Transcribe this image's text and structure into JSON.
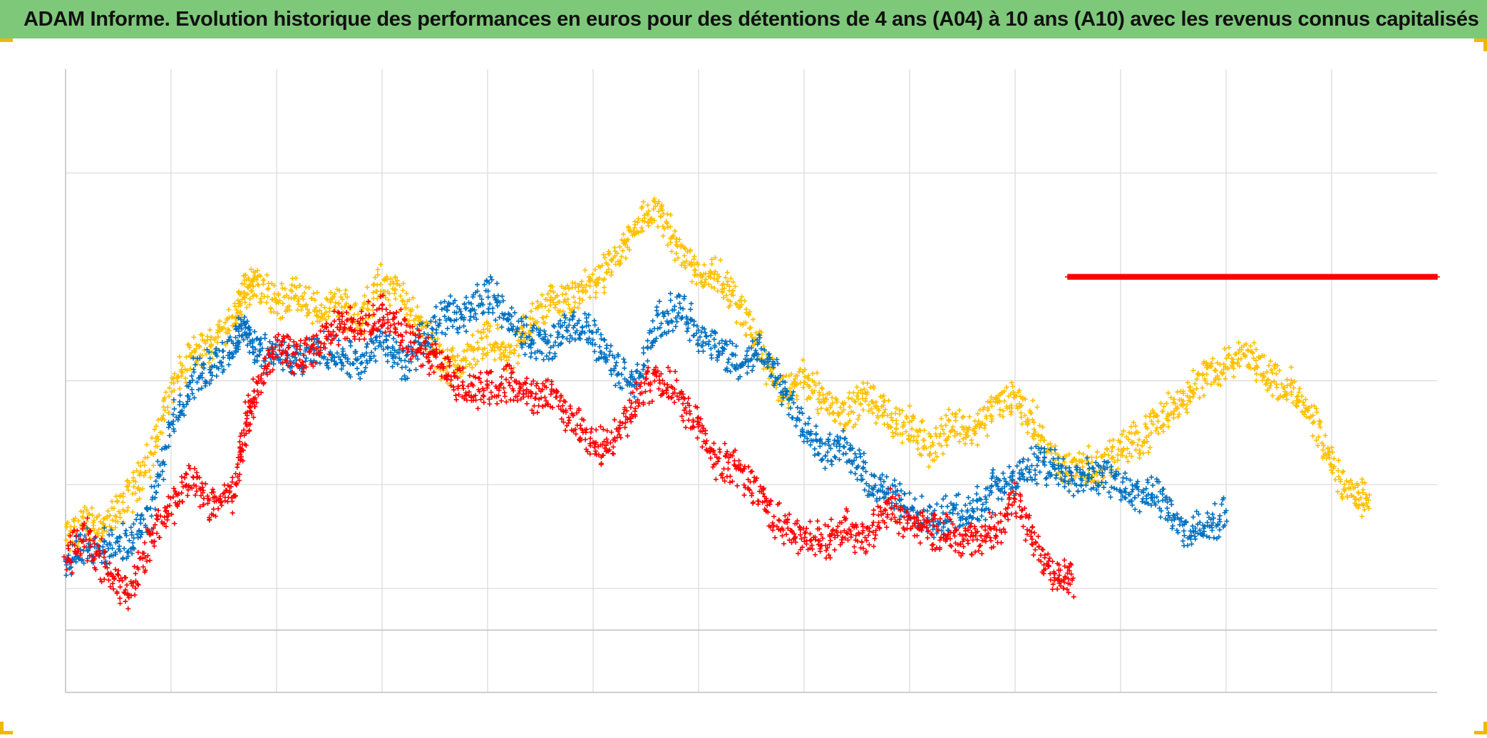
{
  "title": "ADAM Informe. Evolution historique des performances en euros pour des détentions de 4 ans (A04) à 10 ans (A10) avec les revenus connus capitalisés",
  "colors": {
    "title_bg": "#7ec87a",
    "corner_marks": "#f2b705",
    "grid": "#d9d9d9",
    "axis": "#bfbfbf",
    "series_yellow": "#ffc000",
    "series_blue": "#0070c0",
    "series_red": "#ff0000"
  },
  "chart_data": {
    "type": "scatter",
    "title": "ADAM Informe. Evolution historique des performances en euros pour des détentions de 4 ans (A04) à 10 ans (A10) avec les revenus connus capitalisés",
    "xlabel": "",
    "ylabel": "",
    "tick_labels_visible": false,
    "xlim": [
      0,
      13
    ],
    "ylim": [
      -0.6,
      5.4
    ],
    "grid": true,
    "x_gridlines": [
      1,
      2,
      3,
      4,
      5,
      6,
      7,
      8,
      9,
      10,
      11,
      12
    ],
    "y_gridlines": [
      0,
      0.4,
      1.4,
      2.4,
      4.4
    ],
    "legend": "none",
    "marker": "+",
    "series": [
      {
        "color": "#ffc000",
        "points": [
          [
            0,
            0.85
          ],
          [
            0.2,
            1.05
          ],
          [
            0.4,
            1.0
          ],
          [
            0.6,
            1.3
          ],
          [
            0.8,
            1.65
          ],
          [
            1.0,
            2.3
          ],
          [
            1.2,
            2.65
          ],
          [
            1.4,
            2.75
          ],
          [
            1.6,
            3.05
          ],
          [
            1.7,
            3.25
          ],
          [
            1.8,
            3.35
          ],
          [
            2.0,
            3.15
          ],
          [
            2.2,
            3.25
          ],
          [
            2.4,
            3.05
          ],
          [
            2.6,
            3.15
          ],
          [
            2.8,
            3.0
          ],
          [
            3.0,
            3.35
          ],
          [
            3.2,
            3.2
          ],
          [
            3.4,
            2.85
          ],
          [
            3.6,
            2.55
          ],
          [
            3.8,
            2.6
          ],
          [
            4.0,
            2.85
          ],
          [
            4.2,
            2.6
          ],
          [
            4.4,
            2.95
          ],
          [
            4.6,
            3.15
          ],
          [
            4.8,
            3.15
          ],
          [
            5.0,
            3.35
          ],
          [
            5.2,
            3.5
          ],
          [
            5.4,
            3.9
          ],
          [
            5.6,
            4.05
          ],
          [
            5.8,
            3.7
          ],
          [
            6.0,
            3.45
          ],
          [
            6.2,
            3.4
          ],
          [
            6.4,
            3.1
          ],
          [
            6.6,
            2.65
          ],
          [
            6.8,
            2.25
          ],
          [
            7.0,
            2.45
          ],
          [
            7.2,
            2.2
          ],
          [
            7.4,
            2.1
          ],
          [
            7.6,
            2.25
          ],
          [
            7.8,
            2.05
          ],
          [
            8.0,
            1.95
          ],
          [
            8.2,
            1.75
          ],
          [
            8.4,
            2.0
          ],
          [
            8.6,
            1.9
          ],
          [
            8.8,
            2.15
          ],
          [
            9.0,
            2.25
          ],
          [
            9.2,
            1.95
          ],
          [
            9.4,
            1.55
          ],
          [
            9.6,
            1.6
          ],
          [
            9.8,
            1.55
          ],
          [
            10.0,
            1.75
          ],
          [
            10.2,
            1.85
          ],
          [
            10.4,
            2.05
          ],
          [
            10.6,
            2.25
          ],
          [
            10.8,
            2.45
          ],
          [
            11.0,
            2.55
          ],
          [
            11.2,
            2.65
          ],
          [
            11.4,
            2.45
          ],
          [
            11.6,
            2.35
          ],
          [
            11.8,
            2.05
          ],
          [
            12.0,
            1.6
          ],
          [
            12.2,
            1.3
          ],
          [
            12.35,
            1.25
          ]
        ]
      },
      {
        "color": "#0070c0",
        "points": [
          [
            0,
            0.6
          ],
          [
            0.2,
            0.85
          ],
          [
            0.4,
            0.8
          ],
          [
            0.6,
            0.85
          ],
          [
            0.8,
            1.15
          ],
          [
            1.0,
            1.95
          ],
          [
            1.2,
            2.4
          ],
          [
            1.4,
            2.55
          ],
          [
            1.6,
            2.75
          ],
          [
            1.7,
            2.95
          ],
          [
            1.8,
            2.65
          ],
          [
            2.0,
            2.7
          ],
          [
            2.2,
            2.55
          ],
          [
            2.4,
            2.7
          ],
          [
            2.6,
            2.65
          ],
          [
            2.8,
            2.55
          ],
          [
            3.0,
            2.8
          ],
          [
            3.2,
            2.55
          ],
          [
            3.4,
            2.8
          ],
          [
            3.6,
            3.05
          ],
          [
            3.8,
            3.05
          ],
          [
            4.0,
            3.25
          ],
          [
            4.2,
            3.0
          ],
          [
            4.4,
            2.8
          ],
          [
            4.6,
            2.75
          ],
          [
            4.8,
            2.95
          ],
          [
            5.0,
            2.85
          ],
          [
            5.2,
            2.55
          ],
          [
            5.4,
            2.35
          ],
          [
            5.6,
            2.95
          ],
          [
            5.8,
            3.1
          ],
          [
            6.0,
            2.85
          ],
          [
            6.2,
            2.7
          ],
          [
            6.4,
            2.55
          ],
          [
            6.6,
            2.7
          ],
          [
            6.8,
            2.35
          ],
          [
            7.0,
            1.95
          ],
          [
            7.2,
            1.75
          ],
          [
            7.4,
            1.75
          ],
          [
            7.6,
            1.45
          ],
          [
            7.8,
            1.3
          ],
          [
            8.0,
            1.2
          ],
          [
            8.2,
            1.05
          ],
          [
            8.4,
            1.1
          ],
          [
            8.6,
            1.15
          ],
          [
            8.8,
            1.35
          ],
          [
            9.0,
            1.45
          ],
          [
            9.2,
            1.6
          ],
          [
            9.4,
            1.55
          ],
          [
            9.6,
            1.45
          ],
          [
            9.8,
            1.5
          ],
          [
            10.0,
            1.4
          ],
          [
            10.2,
            1.3
          ],
          [
            10.4,
            1.25
          ],
          [
            10.6,
            0.95
          ],
          [
            10.8,
            0.95
          ],
          [
            11.0,
            1.15
          ]
        ]
      },
      {
        "color": "#ff0000",
        "points": [
          [
            0,
            0.7
          ],
          [
            0.2,
            0.9
          ],
          [
            0.4,
            0.55
          ],
          [
            0.6,
            0.35
          ],
          [
            0.8,
            0.85
          ],
          [
            1.0,
            1.2
          ],
          [
            1.2,
            1.45
          ],
          [
            1.4,
            1.2
          ],
          [
            1.6,
            1.35
          ],
          [
            1.7,
            1.95
          ],
          [
            1.8,
            2.3
          ],
          [
            2.0,
            2.75
          ],
          [
            2.2,
            2.6
          ],
          [
            2.4,
            2.75
          ],
          [
            2.6,
            2.95
          ],
          [
            2.8,
            2.9
          ],
          [
            3.0,
            3.05
          ],
          [
            3.2,
            2.85
          ],
          [
            3.4,
            2.65
          ],
          [
            3.6,
            2.55
          ],
          [
            3.8,
            2.3
          ],
          [
            4.0,
            2.35
          ],
          [
            4.2,
            2.4
          ],
          [
            4.4,
            2.25
          ],
          [
            4.6,
            2.3
          ],
          [
            4.8,
            2.05
          ],
          [
            5.0,
            1.75
          ],
          [
            5.2,
            1.8
          ],
          [
            5.4,
            2.2
          ],
          [
            5.6,
            2.45
          ],
          [
            5.8,
            2.25
          ],
          [
            6.0,
            1.95
          ],
          [
            6.2,
            1.6
          ],
          [
            6.4,
            1.55
          ],
          [
            6.6,
            1.25
          ],
          [
            6.8,
            1.0
          ],
          [
            7.0,
            0.9
          ],
          [
            7.2,
            0.85
          ],
          [
            7.4,
            1.0
          ],
          [
            7.6,
            0.9
          ],
          [
            7.8,
            1.2
          ],
          [
            8.0,
            1.05
          ],
          [
            8.2,
            0.95
          ],
          [
            8.4,
            0.95
          ],
          [
            8.6,
            0.85
          ],
          [
            8.8,
            0.95
          ],
          [
            9.0,
            1.25
          ],
          [
            9.2,
            0.8
          ],
          [
            9.4,
            0.55
          ],
          [
            9.55,
            0.5
          ]
        ]
      },
      {
        "color": "#ff0000",
        "points": [
          [
            9.5,
            3.4
          ],
          [
            9.75,
            3.4
          ],
          [
            10.0,
            3.4
          ],
          [
            10.25,
            3.4
          ],
          [
            10.5,
            3.4
          ],
          [
            10.75,
            3.4
          ],
          [
            11.0,
            3.4
          ],
          [
            11.25,
            3.4
          ],
          [
            11.5,
            3.4
          ],
          [
            11.75,
            3.4
          ],
          [
            12.0,
            3.4
          ],
          [
            12.25,
            3.4
          ],
          [
            12.5,
            3.4
          ],
          [
            12.75,
            3.4
          ],
          [
            13.0,
            3.4
          ]
        ]
      }
    ]
  }
}
